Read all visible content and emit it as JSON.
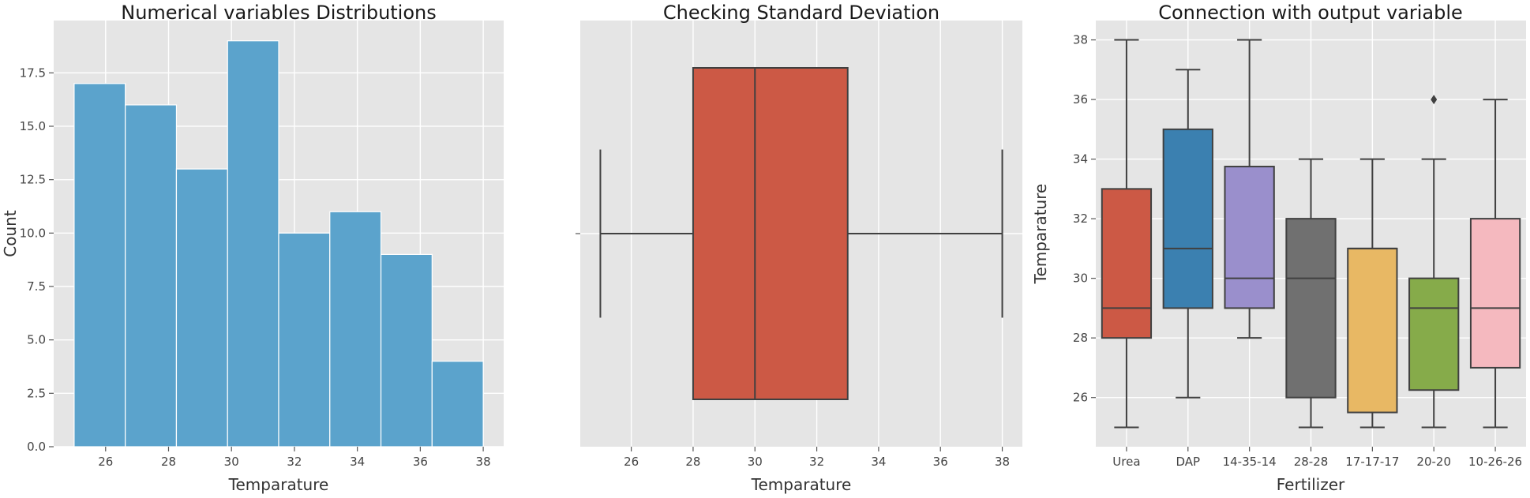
{
  "chart_data": [
    {
      "type": "bar",
      "subtype": "histogram",
      "title": "Numerical variables Distributions",
      "xlabel": "Temparature",
      "ylabel": "Count",
      "bin_edges": [
        25,
        26.625,
        28.25,
        29.875,
        31.5,
        33.125,
        34.75,
        36.375,
        38
      ],
      "values": [
        17,
        16,
        13,
        19,
        10,
        11,
        9,
        4
      ],
      "xlim": [
        24.35,
        38.65
      ],
      "ylim": [
        0,
        19.95
      ],
      "xticks": [
        26,
        28,
        30,
        32,
        34,
        36,
        38
      ],
      "yticks": [
        0.0,
        2.5,
        5.0,
        7.5,
        10.0,
        12.5,
        15.0,
        17.5
      ],
      "ytick_labels": [
        "0.0",
        "2.5",
        "5.0",
        "7.5",
        "10.0",
        "12.5",
        "15.0",
        "17.5"
      ],
      "color": "#5ba3cc",
      "background": "#e5e5e5",
      "grid": true
    },
    {
      "type": "box",
      "title": "Checking Standard Deviation",
      "xlabel": "Temparature",
      "ylabel": "",
      "boxes": [
        {
          "whislo": 25,
          "q1": 28,
          "med": 30,
          "q3": 33,
          "whishi": 38
        }
      ],
      "xlim": [
        24.35,
        38.65
      ],
      "xticks": [
        26,
        28,
        30,
        32,
        34,
        36,
        38
      ],
      "ytick_labels": [
        ""
      ],
      "color": "#cc5945",
      "background": "#e5e5e5",
      "grid": true
    },
    {
      "type": "box",
      "title": "Connection with output variable",
      "xlabel": "Fertilizer",
      "ylabel": "Temparature",
      "categories": [
        "Urea",
        "DAP",
        "14-35-14",
        "28-28",
        "17-17-17",
        "20-20",
        "10-26-26"
      ],
      "boxes": [
        {
          "whislo": 25,
          "q1": 28,
          "med": 29,
          "q3": 33,
          "whishi": 38,
          "color": "#cc5945",
          "fliers": []
        },
        {
          "whislo": 26,
          "q1": 29,
          "med": 31,
          "q3": 35,
          "whishi": 37,
          "color": "#3b80b0",
          "fliers": []
        },
        {
          "whislo": 28,
          "q1": 29,
          "med": 30,
          "q3": 33.75,
          "whishi": 38,
          "color": "#9a8fcc",
          "fliers": []
        },
        {
          "whislo": 25,
          "q1": 26,
          "med": 30,
          "q3": 32,
          "whishi": 34,
          "color": "#707070",
          "fliers": []
        },
        {
          "whislo": 25,
          "q1": 25.5,
          "med": 31,
          "q3": 31,
          "whishi": 34,
          "color": "#e8b864",
          "fliers": []
        },
        {
          "whislo": 25,
          "q1": 26.25,
          "med": 29,
          "q3": 30,
          "whishi": 34,
          "color": "#86ab4a",
          "fliers": [
            36
          ]
        },
        {
          "whislo": 25,
          "q1": 27,
          "med": 29,
          "q3": 32,
          "whishi": 36,
          "color": "#f5b9bf",
          "fliers": []
        }
      ],
      "ylim": [
        24.35,
        38.65
      ],
      "yticks": [
        26,
        28,
        30,
        32,
        34,
        36,
        38
      ],
      "background": "#e5e5e5",
      "grid": true
    }
  ]
}
